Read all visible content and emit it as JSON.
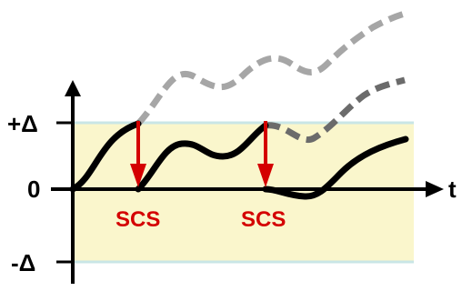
{
  "axes": {
    "x_label": "t",
    "y_ticks": [
      "+Δ",
      "0",
      "-Δ"
    ]
  },
  "markers": [
    {
      "label": "SCS"
    },
    {
      "label": "SCS"
    }
  ],
  "colors": {
    "band_fill": "#faf6cc",
    "band_edge": "#c9e6e6",
    "signal": "#000000",
    "drift_light": "#a6a6a6",
    "drift_dark": "#6b6b6b",
    "arrow": "#d40000",
    "marker_text": "#d40000"
  }
}
